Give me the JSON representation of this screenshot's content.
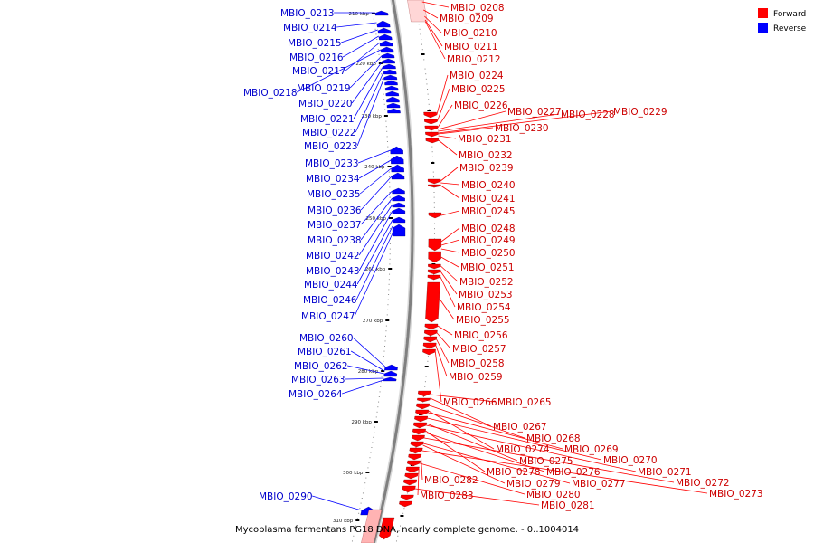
{
  "title": "Mycoplasma fermentans PG18 DNA, nearly complete genome. - 0..1004014",
  "legend": [
    {
      "label": "Forward",
      "color": "#ff0000"
    },
    {
      "label": "Reverse",
      "color": "#0000ff"
    }
  ],
  "colors": {
    "forward": "#ff0000",
    "forward_label": "#cc0000",
    "reverse": "#0000ff",
    "reverse_label": "#0000cc",
    "backbone": "#808080"
  },
  "ticks": [
    "210 kbp",
    "220 kbp",
    "230 kbp",
    "240 kbp",
    "250 kbp",
    "260 kbp",
    "270 kbp",
    "280 kbp",
    "290 kbp",
    "300 kbp",
    "310 kbp"
  ],
  "reverse_genes": [
    "MBIO_0213",
    "MBIO_0214",
    "MBIO_0215",
    "MBIO_0216",
    "MBIO_0217",
    "MBIO_0218",
    "MBIO_0219",
    "MBIO_0220",
    "MBIO_0221",
    "MBIO_0222",
    "MBIO_0223",
    "MBIO_0233",
    "MBIO_0234",
    "MBIO_0235",
    "MBIO_0236",
    "MBIO_0237",
    "MBIO_0238",
    "MBIO_0242",
    "MBIO_0243",
    "MBIO_0244",
    "MBIO_0246",
    "MBIO_0247",
    "MBIO_0260",
    "MBIO_0261",
    "MBIO_0262",
    "MBIO_0263",
    "MBIO_0264",
    "MBIO_0290"
  ],
  "forward_genes": [
    "MBIO_0208",
    "MBIO_0209",
    "MBIO_0210",
    "MBIO_0211",
    "MBIO_0212",
    "MBIO_0224",
    "MBIO_0225",
    "MBIO_0226",
    "MBIO_0227",
    "MBIO_0228",
    "MBIO_0229",
    "MBIO_0230",
    "MBIO_0231",
    "MBIO_0232",
    "MBIO_0239",
    "MBIO_0240",
    "MBIO_0241",
    "MBIO_0245",
    "MBIO_0248",
    "MBIO_0249",
    "MBIO_0250",
    "MBIO_0251",
    "MBIO_0252",
    "MBIO_0253",
    "MBIO_0254",
    "MBIO_0255",
    "MBIO_0256",
    "MBIO_0257",
    "MBIO_0258",
    "MBIO_0259",
    "MBIO_0266",
    "MBIO_0265",
    "MBIO_0267",
    "MBIO_0268",
    "MBIO_0274",
    "MBIO_0269",
    "MBIO_0270",
    "MBIO_0275",
    "MBIO_0271",
    "MBIO_0278",
    "MBIO_0276",
    "MBIO_0272",
    "MBIO_0277",
    "MBIO_0279",
    "MBIO_0273",
    "MBIO_0282",
    "MBIO_0280",
    "MBIO_0283",
    "MBIO_0281"
  ]
}
